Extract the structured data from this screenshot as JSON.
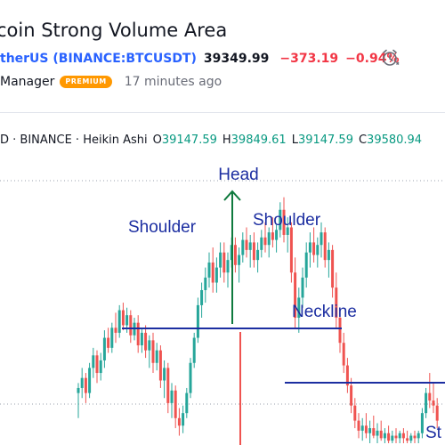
{
  "header": {
    "title": "coin Strong Volume Area",
    "symbol_link": "therUS (BINANCE:BTCUSDT)",
    "price": "39349.99",
    "change": "−373.19",
    "change_percent": "−0.94%",
    "alarm_icon": "alarm-clock-icon",
    "author_role": "Manager",
    "badge": "PREMIUM",
    "published": "17 minutes ago"
  },
  "legend": {
    "prefix": "D · BINANCE · Heikin Ashi",
    "o_label": "O",
    "o_value": "39147.59",
    "h_label": "H",
    "h_value": "39849.61",
    "l_label": "L",
    "l_value": "39147.59",
    "c_label": "C",
    "c_value": "39580.94"
  },
  "colors": {
    "up": "#26a69a",
    "down": "#ef5350",
    "annotation_blue": "#1c2ea1",
    "arrow_green": "#0f7a3e",
    "link": "#2962ff",
    "negative": "#f23645",
    "badge": "#ff9800"
  },
  "annotations": {
    "head": "Head",
    "left_shoulder": "Shoulder",
    "right_shoulder": "Shoulder",
    "neckline": "Neckline",
    "partial_label": "St"
  },
  "chart_data": {
    "type": "candlestick",
    "style": "Heikin Ashi",
    "ylim": [
      0,
      1
    ],
    "candles": [
      [
        0.2,
        0.24,
        0.1,
        0.22
      ],
      [
        0.22,
        0.3,
        0.18,
        0.26
      ],
      [
        0.26,
        0.28,
        0.16,
        0.2
      ],
      [
        0.2,
        0.32,
        0.18,
        0.3
      ],
      [
        0.3,
        0.38,
        0.26,
        0.35
      ],
      [
        0.35,
        0.37,
        0.24,
        0.28
      ],
      [
        0.28,
        0.36,
        0.25,
        0.33
      ],
      [
        0.33,
        0.45,
        0.3,
        0.42
      ],
      [
        0.42,
        0.46,
        0.36,
        0.38
      ],
      [
        0.38,
        0.48,
        0.36,
        0.46
      ],
      [
        0.46,
        0.52,
        0.4,
        0.44
      ],
      [
        0.44,
        0.55,
        0.42,
        0.53
      ],
      [
        0.53,
        0.56,
        0.45,
        0.47
      ],
      [
        0.47,
        0.54,
        0.44,
        0.51
      ],
      [
        0.51,
        0.53,
        0.4,
        0.43
      ],
      [
        0.43,
        0.5,
        0.41,
        0.48
      ],
      [
        0.48,
        0.51,
        0.36,
        0.39
      ],
      [
        0.39,
        0.46,
        0.36,
        0.44
      ],
      [
        0.44,
        0.47,
        0.34,
        0.37
      ],
      [
        0.37,
        0.43,
        0.3,
        0.41
      ],
      [
        0.41,
        0.44,
        0.28,
        0.32
      ],
      [
        0.32,
        0.4,
        0.29,
        0.37
      ],
      [
        0.37,
        0.39,
        0.22,
        0.25
      ],
      [
        0.25,
        0.33,
        0.18,
        0.3
      ],
      [
        0.3,
        0.32,
        0.12,
        0.16
      ],
      [
        0.16,
        0.24,
        0.1,
        0.21
      ],
      [
        0.21,
        0.23,
        0.06,
        0.1
      ],
      [
        0.1,
        0.14,
        0.03,
        0.07
      ],
      [
        0.07,
        0.15,
        0.04,
        0.12
      ],
      [
        0.12,
        0.22,
        0.1,
        0.2
      ],
      [
        0.2,
        0.34,
        0.18,
        0.32
      ],
      [
        0.32,
        0.44,
        0.3,
        0.42
      ],
      [
        0.42,
        0.58,
        0.4,
        0.55
      ],
      [
        0.55,
        0.64,
        0.5,
        0.61
      ],
      [
        0.61,
        0.7,
        0.56,
        0.66
      ],
      [
        0.66,
        0.76,
        0.62,
        0.72
      ],
      [
        0.72,
        0.78,
        0.6,
        0.64
      ],
      [
        0.64,
        0.74,
        0.6,
        0.7
      ],
      [
        0.7,
        0.8,
        0.66,
        0.76
      ],
      [
        0.76,
        0.8,
        0.64,
        0.68
      ],
      [
        0.68,
        0.76,
        0.62,
        0.73
      ],
      [
        0.73,
        0.82,
        0.7,
        0.79
      ],
      [
        0.79,
        0.82,
        0.68,
        0.71
      ],
      [
        0.71,
        0.78,
        0.64,
        0.75
      ],
      [
        0.75,
        0.84,
        0.72,
        0.81
      ],
      [
        0.81,
        0.86,
        0.74,
        0.77
      ],
      [
        0.77,
        0.83,
        0.7,
        0.8
      ],
      [
        0.8,
        0.84,
        0.7,
        0.73
      ],
      [
        0.73,
        0.8,
        0.68,
        0.77
      ],
      [
        0.77,
        0.85,
        0.74,
        0.82
      ],
      [
        0.82,
        0.88,
        0.76,
        0.79
      ],
      [
        0.79,
        0.86,
        0.74,
        0.84
      ],
      [
        0.84,
        0.9,
        0.78,
        0.81
      ],
      [
        0.81,
        0.87,
        0.76,
        0.85
      ],
      [
        0.85,
        0.96,
        0.82,
        0.93
      ],
      [
        0.93,
        0.98,
        0.8,
        0.83
      ],
      [
        0.83,
        0.9,
        0.76,
        0.86
      ],
      [
        0.86,
        0.88,
        0.64,
        0.68
      ],
      [
        0.68,
        0.74,
        0.46,
        0.5
      ],
      [
        0.5,
        0.62,
        0.44,
        0.58
      ],
      [
        0.58,
        0.7,
        0.54,
        0.66
      ],
      [
        0.66,
        0.8,
        0.62,
        0.76
      ],
      [
        0.76,
        0.84,
        0.7,
        0.8
      ],
      [
        0.8,
        0.86,
        0.72,
        0.75
      ],
      [
        0.75,
        0.82,
        0.7,
        0.79
      ],
      [
        0.79,
        0.88,
        0.74,
        0.84
      ],
      [
        0.84,
        0.86,
        0.7,
        0.73
      ],
      [
        0.73,
        0.8,
        0.66,
        0.77
      ],
      [
        0.77,
        0.79,
        0.58,
        0.62
      ],
      [
        0.62,
        0.68,
        0.46,
        0.5
      ],
      [
        0.5,
        0.54,
        0.36,
        0.4
      ],
      [
        0.4,
        0.44,
        0.28,
        0.31
      ],
      [
        0.31,
        0.34,
        0.2,
        0.23
      ],
      [
        0.23,
        0.26,
        0.12,
        0.15
      ],
      [
        0.15,
        0.18,
        0.06,
        0.09
      ],
      [
        0.09,
        0.12,
        0.02,
        0.05
      ],
      [
        0.05,
        0.1,
        0.01,
        0.07
      ],
      [
        0.07,
        0.12,
        0.02,
        0.04
      ],
      [
        0.04,
        0.09,
        0.0,
        0.06
      ],
      [
        0.06,
        0.11,
        0.02,
        0.03
      ],
      [
        0.03,
        0.08,
        0.0,
        0.05
      ],
      [
        0.05,
        0.09,
        0.01,
        0.02
      ],
      [
        0.02,
        0.06,
        0.0,
        0.04
      ],
      [
        0.04,
        0.07,
        0.0,
        0.01
      ],
      [
        0.01,
        0.05,
        0.0,
        0.03
      ],
      [
        0.03,
        0.06,
        0.0,
        0.02
      ],
      [
        0.02,
        0.05,
        0.0,
        0.04
      ],
      [
        0.04,
        0.06,
        0.0,
        0.02
      ],
      [
        0.02,
        0.05,
        0.0,
        0.01
      ],
      [
        0.01,
        0.04,
        0.0,
        0.03
      ],
      [
        0.03,
        0.05,
        0.0,
        0.02
      ],
      [
        0.02,
        0.05,
        0.0,
        0.04
      ],
      [
        0.04,
        0.14,
        0.02,
        0.12
      ],
      [
        0.12,
        0.22,
        0.1,
        0.2
      ],
      [
        0.2,
        0.28,
        0.14,
        0.17
      ],
      [
        0.17,
        0.24,
        0.12,
        0.15
      ],
      [
        0.15,
        0.18,
        0.06,
        0.09
      ]
    ]
  }
}
